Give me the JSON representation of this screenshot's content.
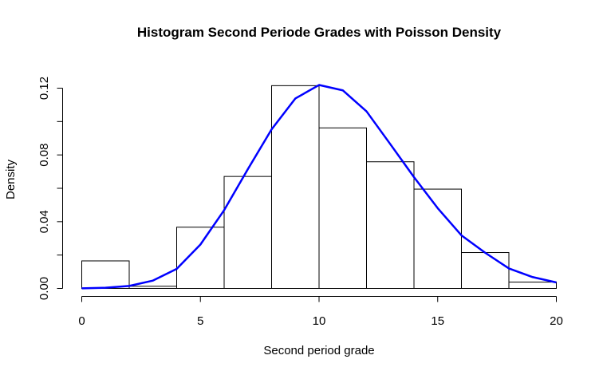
{
  "chart_data": {
    "type": "bar",
    "title": "Histogram Second Periode Grades with Poisson Density",
    "xlabel": "Second period grade",
    "ylabel": "Density",
    "xlim": [
      0,
      20
    ],
    "ylim": [
      0,
      0.12
    ],
    "x_ticks": [
      0,
      5,
      10,
      15,
      20
    ],
    "x_tick_labels": [
      "0",
      "5",
      "10",
      "15",
      "20"
    ],
    "y_ticks": [
      0,
      0.04,
      0.08,
      0.12
    ],
    "y_tick_labels": [
      "0.00",
      "0.04",
      "0.08",
      "0.12"
    ],
    "histogram": {
      "bin_edges": [
        0,
        2,
        4,
        6,
        8,
        10,
        12,
        14,
        16,
        18,
        20
      ],
      "density": [
        0.0165,
        0.0013,
        0.0367,
        0.0671,
        0.1215,
        0.0962,
        0.0759,
        0.0595,
        0.0215,
        0.0038
      ]
    },
    "series": [
      {
        "name": "Poisson density",
        "color": "#0000ff",
        "x": [
          0,
          1,
          2,
          3,
          4,
          5,
          6,
          7,
          8,
          9,
          10,
          11,
          12,
          13,
          14,
          15,
          16,
          17,
          18,
          19,
          20
        ],
        "values": [
          4e-05,
          0.0004,
          0.0015,
          0.0047,
          0.0117,
          0.0263,
          0.0469,
          0.0715,
          0.0953,
          0.1138,
          0.1219,
          0.1187,
          0.1061,
          0.0865,
          0.0667,
          0.0481,
          0.0318,
          0.0214,
          0.012,
          0.0068,
          0.0036
        ]
      }
    ],
    "grid": false,
    "legend": "none"
  }
}
